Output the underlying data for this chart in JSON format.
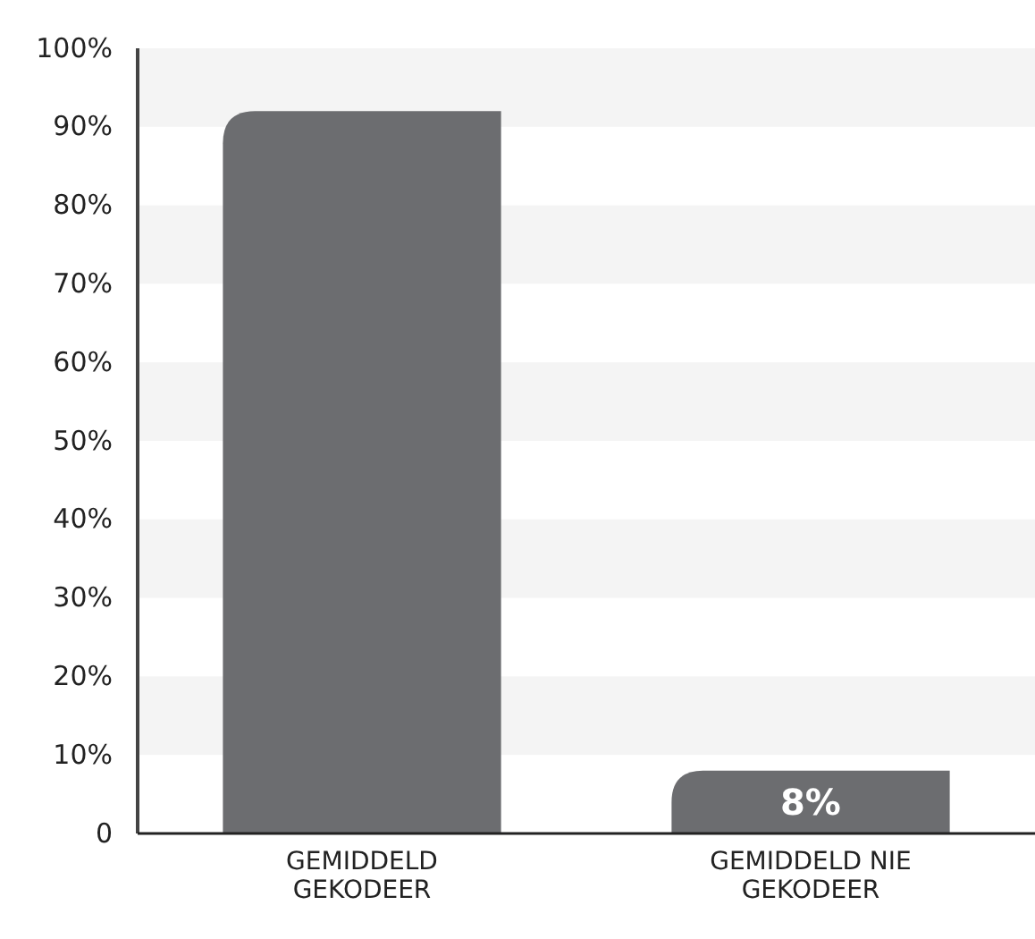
{
  "chart_data": {
    "type": "bar",
    "categories": [
      "GEMIDDELD GEKODEER",
      "GEMIDDELD NIE GEKODEER"
    ],
    "values": [
      92,
      8
    ],
    "value_labels": [
      null,
      "8%"
    ],
    "color": "#6c6d70",
    "ylim": [
      0,
      100
    ],
    "yticks": [
      {
        "value": 0,
        "label": "0"
      },
      {
        "value": 10,
        "label": "10%"
      },
      {
        "value": 20,
        "label": "20%"
      },
      {
        "value": 30,
        "label": "30%"
      },
      {
        "value": 40,
        "label": "40%"
      },
      {
        "value": 50,
        "label": "50%"
      },
      {
        "value": 60,
        "label": "60%"
      },
      {
        "value": 70,
        "label": "70%"
      },
      {
        "value": 80,
        "label": "80%"
      },
      {
        "value": 90,
        "label": "90%"
      },
      {
        "value": 100,
        "label": "100%"
      }
    ],
    "bands": [
      {
        "axis": "y",
        "from": 10,
        "to": 20,
        "color": "#f4f4f4"
      },
      {
        "axis": "y",
        "from": 30,
        "to": 40,
        "color": "#f4f4f4"
      },
      {
        "axis": "y",
        "from": 50,
        "to": 60,
        "color": "#f4f4f4"
      },
      {
        "axis": "y",
        "from": 70,
        "to": 80,
        "color": "#f4f4f4"
      },
      {
        "axis": "y",
        "from": 90,
        "to": 100,
        "color": "#f4f4f4"
      }
    ]
  }
}
